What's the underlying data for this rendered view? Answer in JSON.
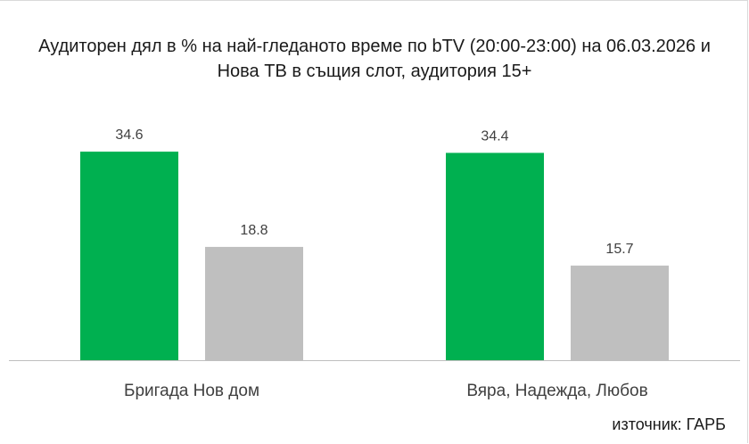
{
  "chart_data": {
    "type": "bar",
    "title": "Аудиторен дял в % на най-гледаното време по bTV (20:00-23:00) на 06.03.2026 и Нова ТВ в същия слот, аудитория 15+",
    "categories": [
      "Бригада Нов дом",
      "Вяра, Надежда, Любов"
    ],
    "series": [
      {
        "values": [
          34.6,
          34.4
        ],
        "color": "#00b050"
      },
      {
        "values": [
          18.8,
          15.7
        ],
        "color": "#bfbfbf"
      }
    ],
    "value_labels": [
      [
        "34.6",
        "34.4"
      ],
      [
        "18.8",
        "15.7"
      ]
    ],
    "ylim": [
      0,
      40
    ],
    "grid": false,
    "legend": "none"
  },
  "source": "източник: ГАРБ"
}
